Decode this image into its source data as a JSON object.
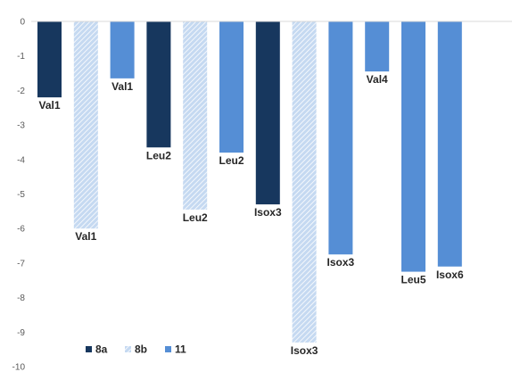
{
  "chart_data": {
    "type": "bar",
    "ylim": [
      -10,
      0
    ],
    "y_ticks": [
      0,
      -1,
      -2,
      -3,
      -4,
      -5,
      -6,
      -7,
      -8,
      -9,
      -10
    ],
    "grid": false,
    "legend_position": "bottom-left",
    "colors": {
      "8a": "#17375e",
      "8b": "#c5d9f1",
      "8b_stripe": "#ffffff",
      "11": "#558ed5",
      "axis": "#d9d9d9",
      "label": "#262626",
      "tick": "#595959"
    },
    "legend": [
      {
        "name": "8a",
        "style": "8a"
      },
      {
        "name": "8b",
        "style": "8b"
      },
      {
        "name": "11",
        "style": "11"
      }
    ],
    "bars": [
      {
        "series": "8a",
        "label": "Val1",
        "value": -2.2
      },
      {
        "series": "8b",
        "label": "Val1",
        "value": -6.0
      },
      {
        "series": "11",
        "label": "Val1",
        "value": -1.65
      },
      {
        "series": "8a",
        "label": "Leu2",
        "value": -3.65
      },
      {
        "series": "8b",
        "label": "Leu2",
        "value": -5.45
      },
      {
        "series": "11",
        "label": "Leu2",
        "value": -3.8
      },
      {
        "series": "8a",
        "label": "Isox3",
        "value": -5.3
      },
      {
        "series": "8b",
        "label": "Isox3",
        "value": -9.3
      },
      {
        "series": "11",
        "label": "Isox3",
        "value": -6.75
      },
      {
        "series": "11",
        "label": "Val4",
        "value": -1.45
      },
      {
        "series": "11",
        "label": "Leu5",
        "value": -7.25
      },
      {
        "series": "11",
        "label": "Isox6",
        "value": -7.1
      }
    ]
  }
}
